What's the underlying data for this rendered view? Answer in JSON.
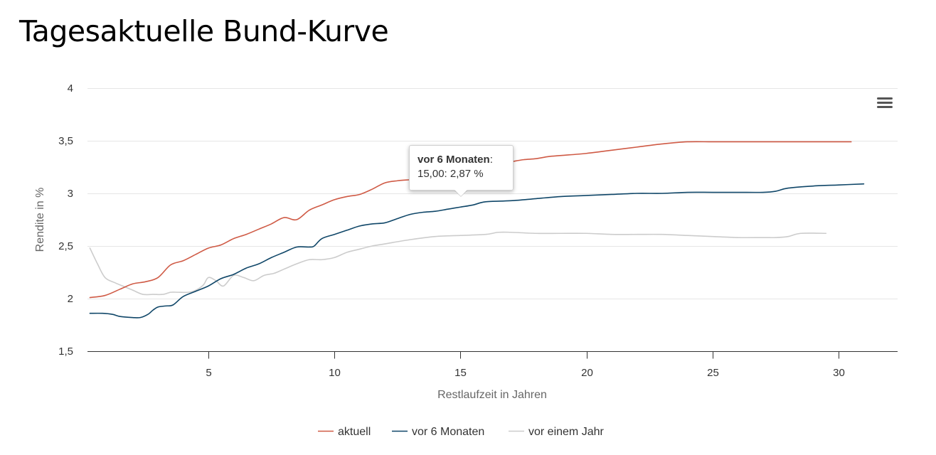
{
  "page": {
    "title": "Tagesaktuelle Bund-Kurve"
  },
  "tooltip": {
    "series": "vor 6 Monaten",
    "value_text": "15,00: 2,87 %"
  },
  "menu": {
    "icon": "hamburger-menu-icon"
  },
  "colors": {
    "aktuell": "#cf5a45",
    "vor_6_monaten": "#0f4668",
    "vor_einem_jahr": "#cccccc",
    "grid": "#e6e6e6",
    "axis": "#333333"
  },
  "chart_data": {
    "type": "line",
    "title": "Tagesaktuelle Bund-Kurve",
    "xlabel": "Restlaufzeit in Jahren",
    "ylabel": "Rendite in %",
    "xlim": [
      0,
      32
    ],
    "ylim": [
      1.5,
      4
    ],
    "x_ticks": [
      5,
      10,
      15,
      20,
      25,
      30
    ],
    "x_tick_labels": [
      "5",
      "10",
      "15",
      "20",
      "25",
      "30"
    ],
    "y_ticks": [
      1.5,
      2,
      2.5,
      3,
      3.5,
      4
    ],
    "y_tick_labels": [
      "1,5",
      "2",
      "2,5",
      "3",
      "3,5",
      "4"
    ],
    "grid": true,
    "legend_position": "bottom-center",
    "series": [
      {
        "name": "aktuell",
        "color": "#cf5a45",
        "x": [
          0.3,
          0.9,
          1.5,
          2.0,
          2.5,
          3.0,
          3.5,
          4.0,
          4.5,
          5.0,
          5.5,
          6.0,
          6.5,
          7.0,
          7.5,
          8.0,
          8.5,
          9.0,
          9.5,
          10.0,
          10.5,
          11.0,
          11.5,
          12.0,
          12.5,
          13.0,
          13.5,
          14.0,
          14.5,
          15.0,
          15.5,
          16.0,
          16.5,
          17.0,
          17.5,
          18.0,
          18.5,
          19.0,
          20.0,
          21.0,
          22.0,
          23.0,
          24.0,
          25.0,
          26.0,
          27.0,
          28.0,
          29.0,
          30.0,
          30.5
        ],
        "y": [
          2.01,
          2.03,
          2.09,
          2.14,
          2.16,
          2.2,
          2.32,
          2.36,
          2.42,
          2.48,
          2.51,
          2.57,
          2.61,
          2.66,
          2.71,
          2.77,
          2.75,
          2.84,
          2.89,
          2.94,
          2.97,
          2.99,
          3.04,
          3.1,
          3.12,
          3.13,
          3.14,
          3.16,
          3.19,
          3.21,
          3.24,
          3.26,
          3.28,
          3.3,
          3.32,
          3.33,
          3.35,
          3.36,
          3.38,
          3.41,
          3.44,
          3.47,
          3.49,
          3.49,
          3.49,
          3.49,
          3.49,
          3.49,
          3.49,
          3.49
        ]
      },
      {
        "name": "vor 6 Monaten",
        "color": "#0f4668",
        "x": [
          0.3,
          0.8,
          1.2,
          1.5,
          2.0,
          2.3,
          2.6,
          2.8,
          3.0,
          3.3,
          3.6,
          4.0,
          4.5,
          5.0,
          5.5,
          6.0,
          6.5,
          7.0,
          7.5,
          8.0,
          8.5,
          9.0,
          9.2,
          9.5,
          10.0,
          10.5,
          11.0,
          11.5,
          12.0,
          12.5,
          13.0,
          13.5,
          14.0,
          14.5,
          15.0,
          15.5,
          16.0,
          17.0,
          18.0,
          19.0,
          20.0,
          21.0,
          22.0,
          23.0,
          24.0,
          25.0,
          26.0,
          27.0,
          27.5,
          28.0,
          29.0,
          30.0,
          31.0
        ],
        "y": [
          1.86,
          1.86,
          1.85,
          1.83,
          1.82,
          1.82,
          1.85,
          1.89,
          1.92,
          1.93,
          1.94,
          2.02,
          2.07,
          2.12,
          2.19,
          2.23,
          2.29,
          2.33,
          2.39,
          2.44,
          2.49,
          2.49,
          2.5,
          2.57,
          2.61,
          2.65,
          2.69,
          2.71,
          2.72,
          2.76,
          2.8,
          2.82,
          2.83,
          2.85,
          2.87,
          2.89,
          2.92,
          2.93,
          2.95,
          2.97,
          2.98,
          2.99,
          3.0,
          3.0,
          3.01,
          3.01,
          3.01,
          3.01,
          3.02,
          3.05,
          3.07,
          3.08,
          3.09
        ]
      },
      {
        "name": "vor einem Jahr",
        "color": "#cccccc",
        "x": [
          0.3,
          0.6,
          0.9,
          1.3,
          1.7,
          2.0,
          2.4,
          2.8,
          3.2,
          3.5,
          3.8,
          4.2,
          4.5,
          4.8,
          5.0,
          5.3,
          5.6,
          6.0,
          6.4,
          6.8,
          7.2,
          7.6,
          8.0,
          8.5,
          9.0,
          9.5,
          10.0,
          10.5,
          11.0,
          11.5,
          12.0,
          13.0,
          14.0,
          15.0,
          16.0,
          16.5,
          17.0,
          18.0,
          19.0,
          20.0,
          21.0,
          22.0,
          23.0,
          24.0,
          25.0,
          26.0,
          27.0,
          27.5,
          28.0,
          28.5,
          29.5
        ],
        "y": [
          2.48,
          2.33,
          2.2,
          2.15,
          2.11,
          2.08,
          2.04,
          2.04,
          2.04,
          2.06,
          2.06,
          2.06,
          2.08,
          2.13,
          2.2,
          2.17,
          2.12,
          2.22,
          2.2,
          2.17,
          2.22,
          2.24,
          2.28,
          2.33,
          2.37,
          2.37,
          2.39,
          2.44,
          2.47,
          2.5,
          2.52,
          2.56,
          2.59,
          2.6,
          2.61,
          2.63,
          2.63,
          2.62,
          2.62,
          2.62,
          2.61,
          2.61,
          2.61,
          2.6,
          2.59,
          2.58,
          2.58,
          2.58,
          2.59,
          2.62,
          2.62
        ]
      }
    ]
  }
}
